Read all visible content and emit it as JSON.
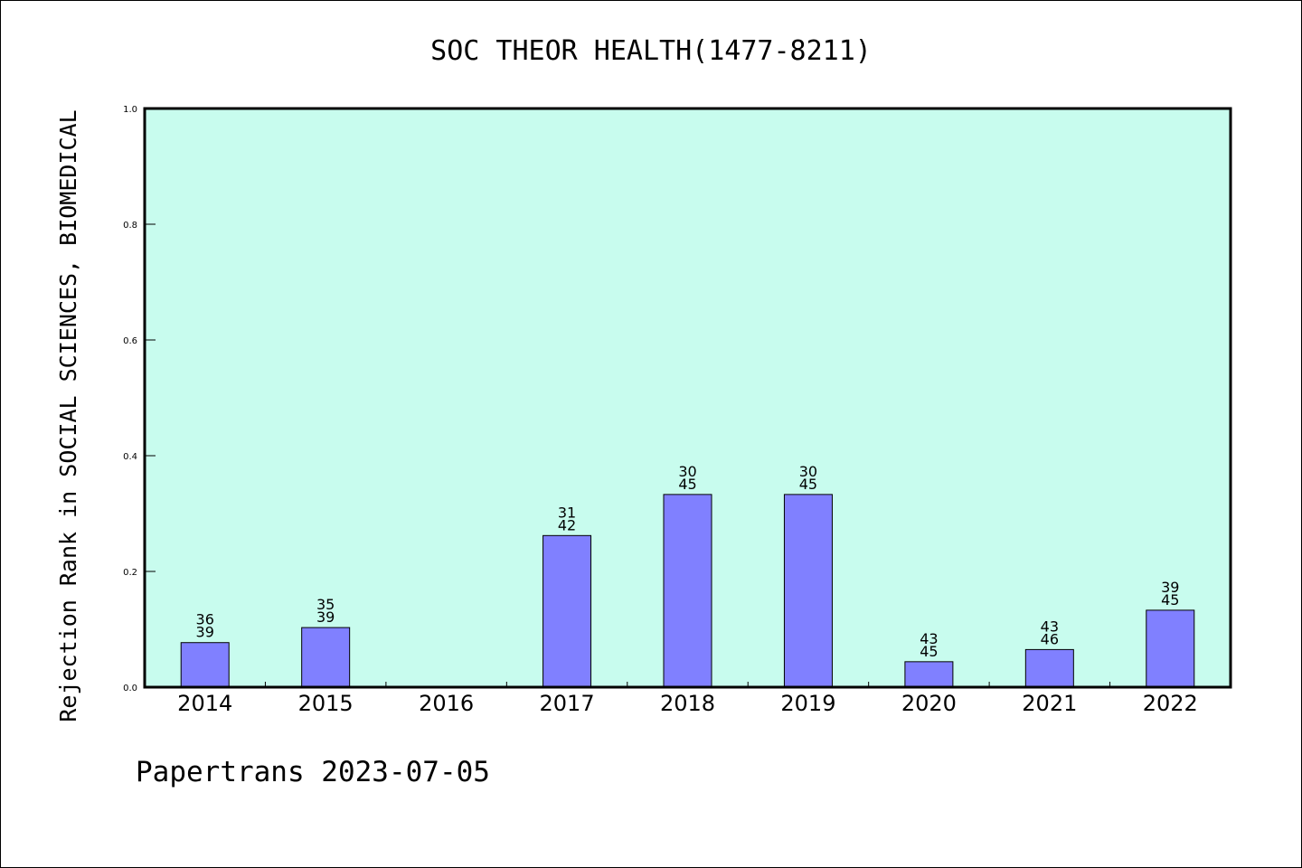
{
  "chart_data": {
    "type": "bar",
    "title": "SOC THEOR HEALTH(1477-8211)",
    "ylabel": "Rejection Rank in SOCIAL SCIENCES, BIOMEDICAL",
    "xlabel": "",
    "ylim": [
      0,
      1.0
    ],
    "yticks": [
      "0.0",
      "0.2",
      "0.4",
      "0.6",
      "0.8",
      "1.0"
    ],
    "categories": [
      "2014",
      "2015",
      "2016",
      "2017",
      "2018",
      "2019",
      "2020",
      "2021",
      "2022"
    ],
    "values": [
      0.077,
      0.103,
      null,
      0.262,
      0.333,
      0.333,
      0.044,
      0.065,
      0.133
    ],
    "labels_top": [
      "36",
      "35",
      "",
      "31",
      "30",
      "30",
      "43",
      "43",
      "39"
    ],
    "labels_bottom": [
      "39",
      "39",
      "",
      "42",
      "45",
      "45",
      "45",
      "46",
      "45"
    ],
    "grid": false,
    "colors": {
      "plot_bg": "#c8fcee",
      "bar": "#8080ff",
      "bar_edge": "#000000"
    }
  },
  "footer": {
    "text": "Papertrans 2023-07-05"
  }
}
